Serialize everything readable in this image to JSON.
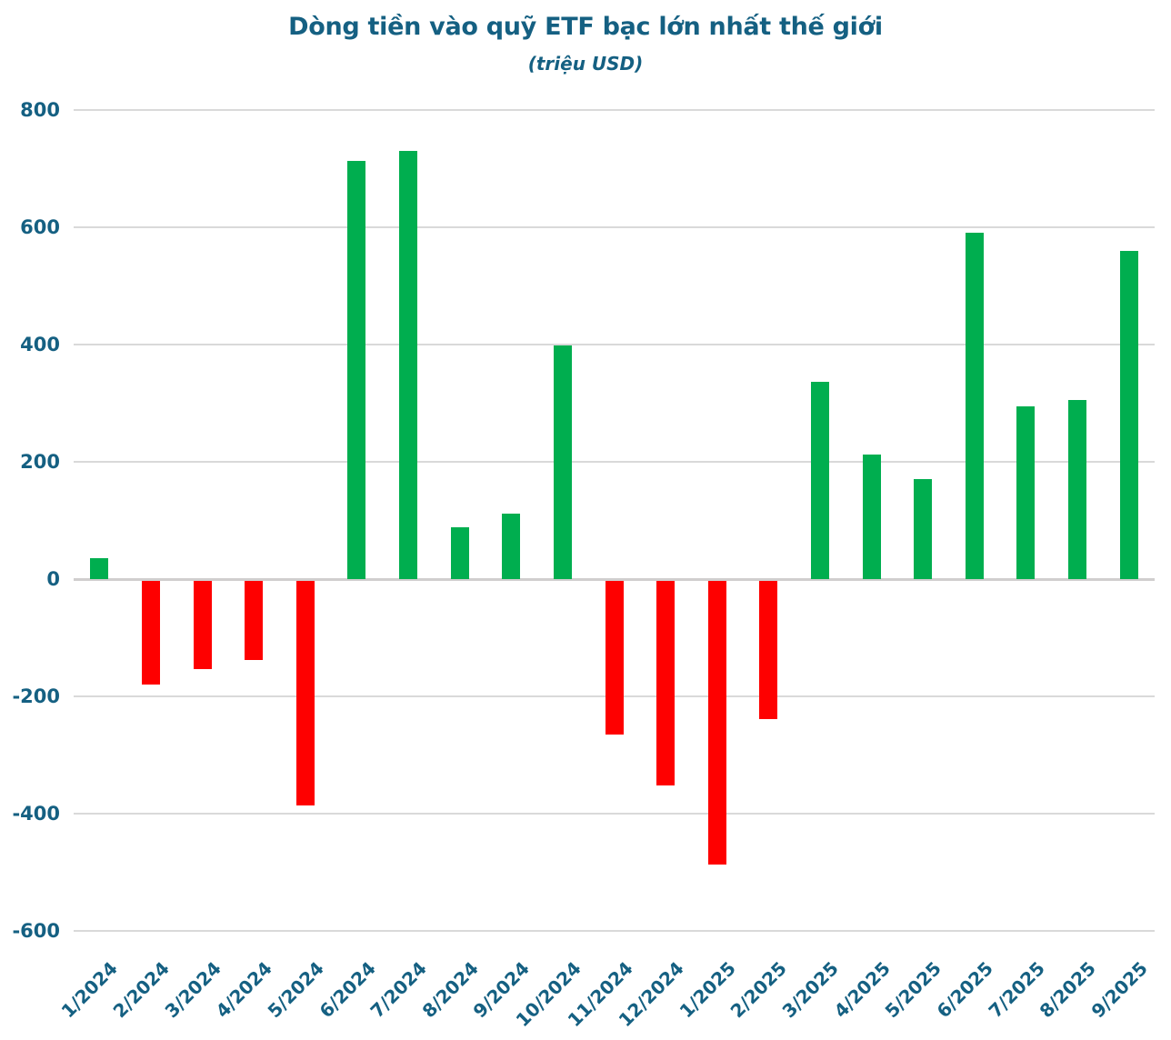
{
  "chart_data": {
    "type": "bar",
    "title": "Dòng tiền vào quỹ ETF bạc lớn nhất thế giới",
    "subtitle": "(triệu USD)",
    "categories": [
      "1/2024",
      "2/2024",
      "3/2024",
      "4/2024",
      "5/2024",
      "6/2024",
      "7/2024",
      "8/2024",
      "9/2024",
      "10/2024",
      "11/2024",
      "12/2024",
      "1/2025",
      "2/2025",
      "3/2025",
      "4/2025",
      "5/2025",
      "6/2025",
      "7/2025",
      "8/2025",
      "9/2025"
    ],
    "values": [
      35,
      -178,
      -151,
      -135,
      -384,
      713,
      731,
      88,
      111,
      398,
      -263,
      -349,
      -484,
      -236,
      336,
      213,
      171,
      590,
      294,
      305,
      560
    ],
    "xlabel": "",
    "ylabel": "",
    "ylim": [
      -600,
      800
    ],
    "ytick_interval": 200,
    "yticks": [
      800,
      600,
      400,
      200,
      0,
      -200,
      -400,
      -600
    ],
    "grid": true,
    "legend": false,
    "value_color_rule": "green-positive-red-negative"
  },
  "colors": {
    "title_text": "#156082",
    "axis_text": "#156082",
    "positive_bar": "#00AE4F",
    "negative_bar": "#FE0000",
    "gridline": "#D9D9D9",
    "zero_line": "#D0CECE",
    "background": "#FFFFFF"
  }
}
